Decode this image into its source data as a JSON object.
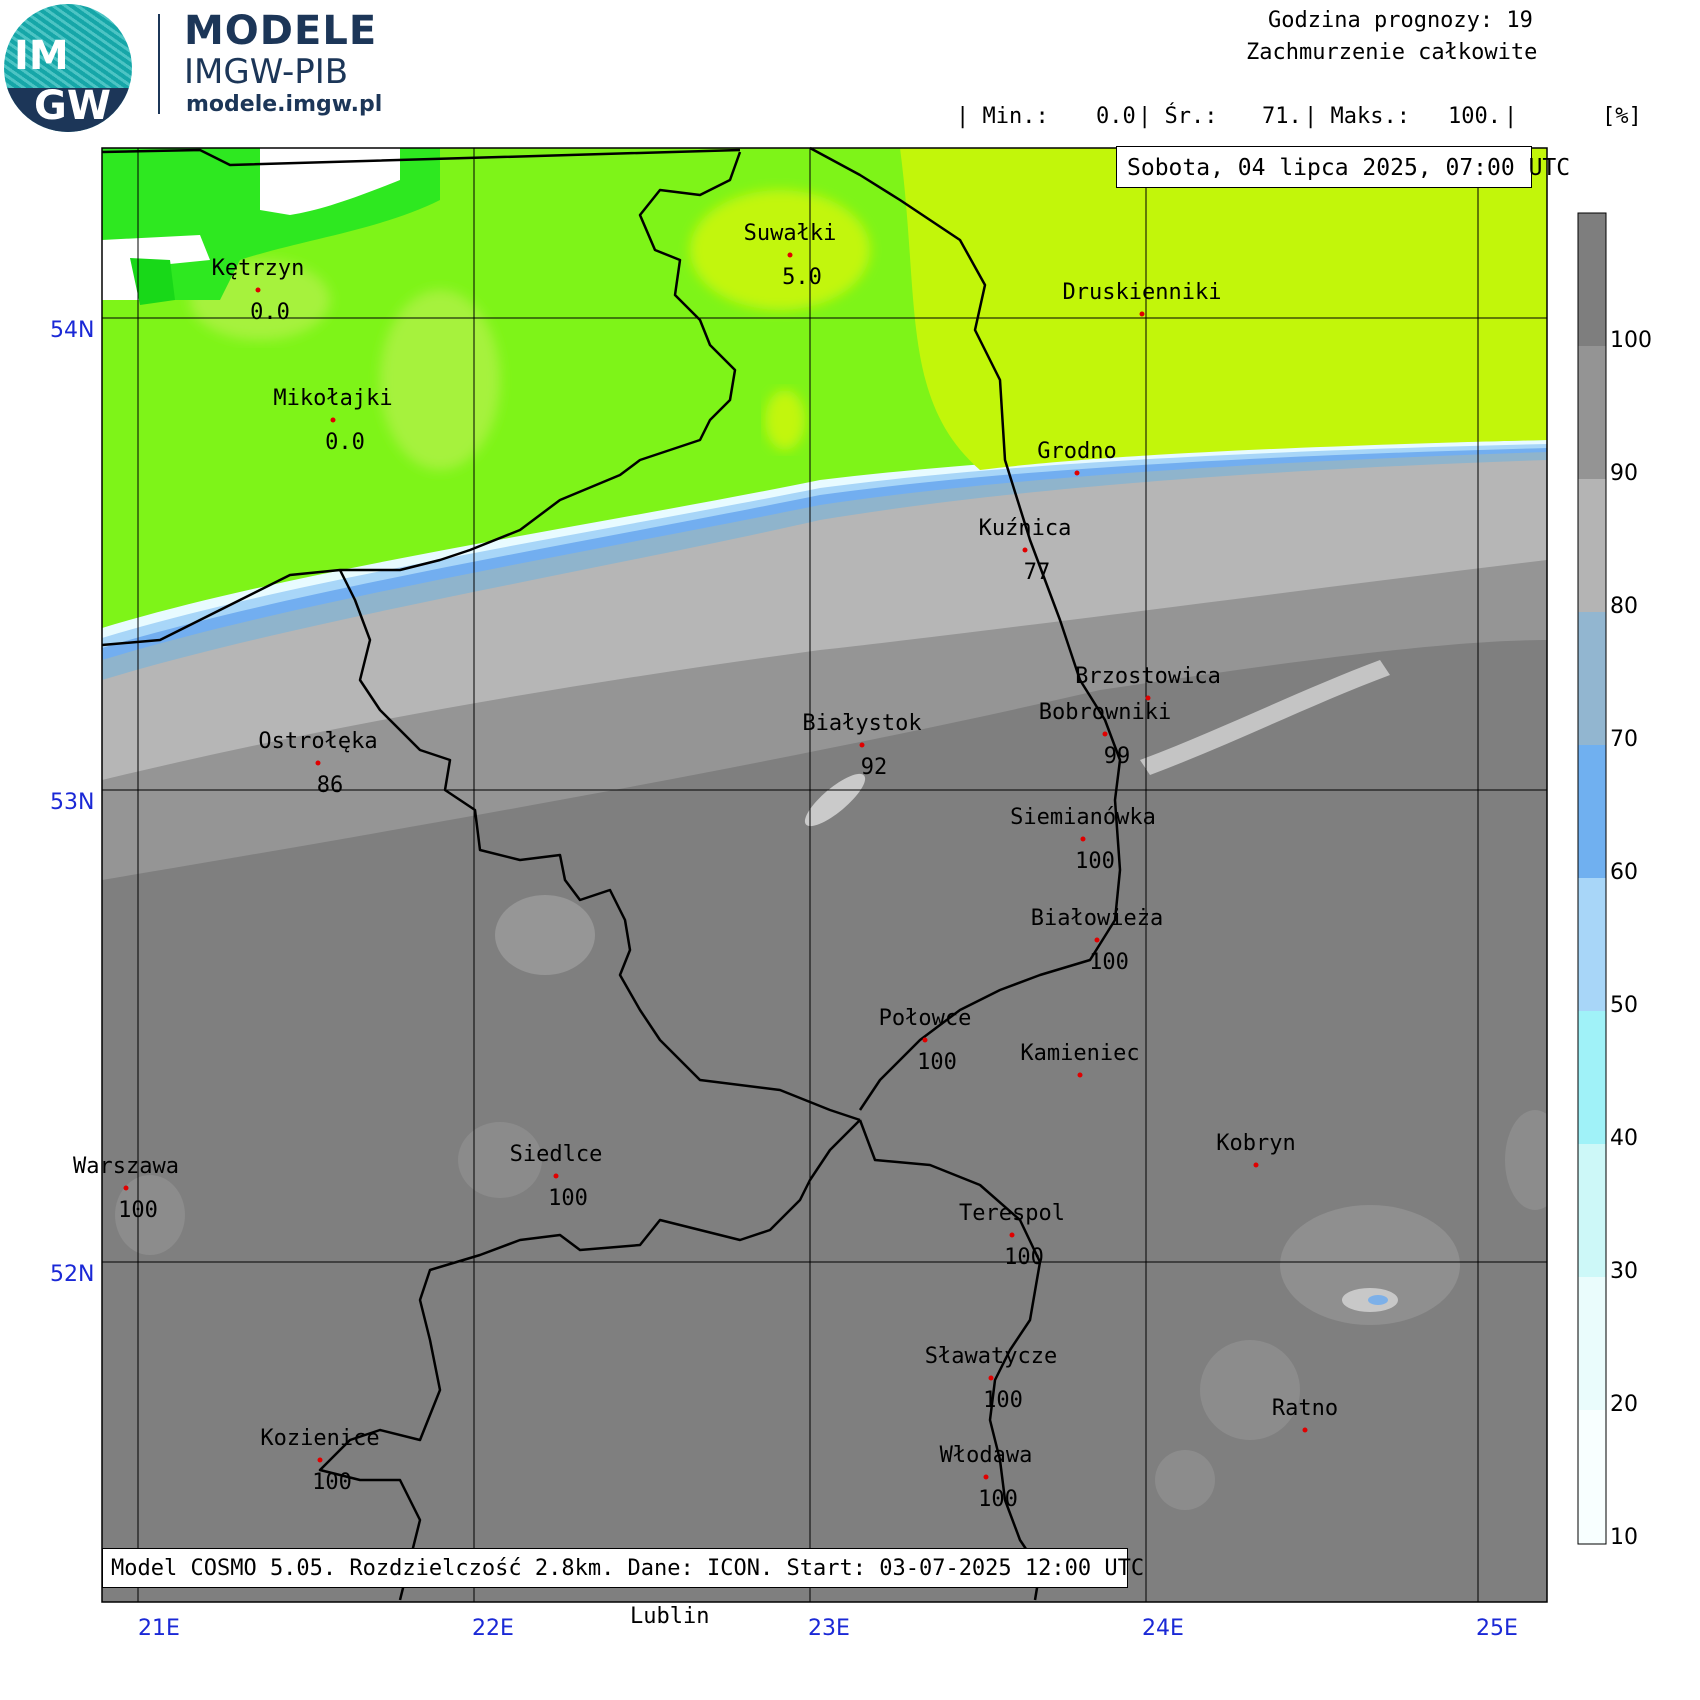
{
  "header": {
    "brand_title": "MODELE",
    "brand_subtitle": "IMGW-PIB",
    "brand_url": "modele.imgw.pl",
    "logo_text_top": "IM",
    "logo_text_bottom": "GW",
    "forecast_hour": "Godzina prognozy: 19",
    "parameter": "Zachmurzenie całkowite",
    "stats": {
      "min_label": "| Min.:",
      "min_value": "0.0",
      "avg_label": "| Śr.:",
      "avg_value": "71.",
      "max_label": "| Maks.:",
      "max_value": "100.",
      "end_sep": "|",
      "unit": "[%]"
    }
  },
  "info_box": "Sobota, 04 lipca 2025, 07:00 UTC",
  "model_box": "Model COSMO 5.05. Rozdzielczość 2.8km. Dane: ICON. Start: 03-07-2025 12:00 UTC",
  "bottom_label": "Lublin",
  "axes": {
    "lat_labels": [
      "54N",
      "53N",
      "52N"
    ],
    "lon_labels": [
      "21E",
      "22E",
      "23E",
      "24E",
      "25E"
    ]
  },
  "colorbar": {
    "ticks": [
      "100",
      "90",
      "80",
      "70",
      "60",
      "50",
      "40",
      "30",
      "20",
      "10"
    ],
    "colors": [
      "#7e7e7e",
      "#949494",
      "#b4b4b4",
      "#92b6d0",
      "#70b0f0",
      "#a8d6f8",
      "#a0f2f8",
      "#cdf8f8",
      "#eafcfc",
      "#f8ffff"
    ]
  },
  "cities": [
    {
      "name": "Kętrzyn",
      "value": "0.0"
    },
    {
      "name": "Suwałki",
      "value": "5.0"
    },
    {
      "name": "Druskienniki",
      "value": ""
    },
    {
      "name": "Mikołajki",
      "value": "0.0"
    },
    {
      "name": "Grodno",
      "value": ""
    },
    {
      "name": "Kuźnica",
      "value": "77"
    },
    {
      "name": "Brzostowica",
      "value": ""
    },
    {
      "name": "Bobrowniki",
      "value": "99"
    },
    {
      "name": "Białystok",
      "value": "92"
    },
    {
      "name": "Ostrołęka",
      "value": "86"
    },
    {
      "name": "Siemianówka",
      "value": "100"
    },
    {
      "name": "Białowieża",
      "value": "100"
    },
    {
      "name": "Połowce",
      "value": "100"
    },
    {
      "name": "Kamieniec",
      "value": ""
    },
    {
      "name": "Kobryn",
      "value": ""
    },
    {
      "name": "Warszawa",
      "value": "100"
    },
    {
      "name": "Siedlce",
      "value": "100"
    },
    {
      "name": "Terespol",
      "value": "100"
    },
    {
      "name": "Sławatycze",
      "value": "100"
    },
    {
      "name": "Ratno",
      "value": ""
    },
    {
      "name": "Kozienice",
      "value": "100"
    },
    {
      "name": "Włodawa",
      "value": "100"
    }
  ]
}
